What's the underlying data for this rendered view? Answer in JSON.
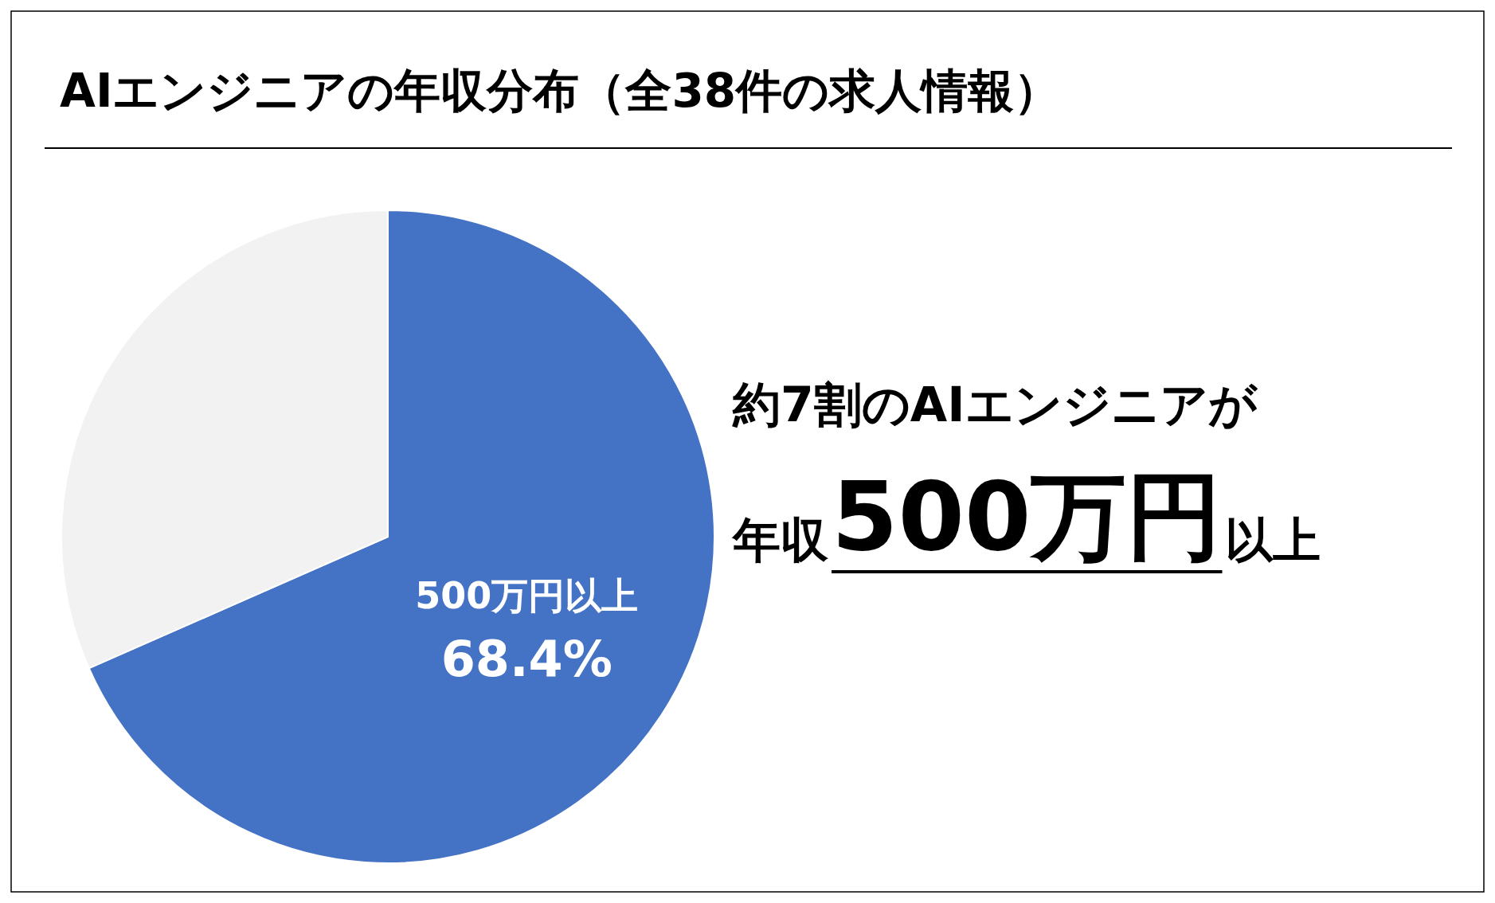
{
  "chart_data": {
    "type": "pie",
    "title": "AIエンジニアの年収分布（全38件の求人情報）",
    "categories": [
      "500万円以上",
      null
    ],
    "values": [
      68.4,
      31.6
    ],
    "colors": [
      "#4472c4",
      "#f2f2f2"
    ],
    "value_labels": [
      "68.4%",
      null
    ],
    "legend": false,
    "annotations": [
      "約7割のAIエンジニアが",
      "年収",
      "500万円",
      "以上"
    ]
  }
}
